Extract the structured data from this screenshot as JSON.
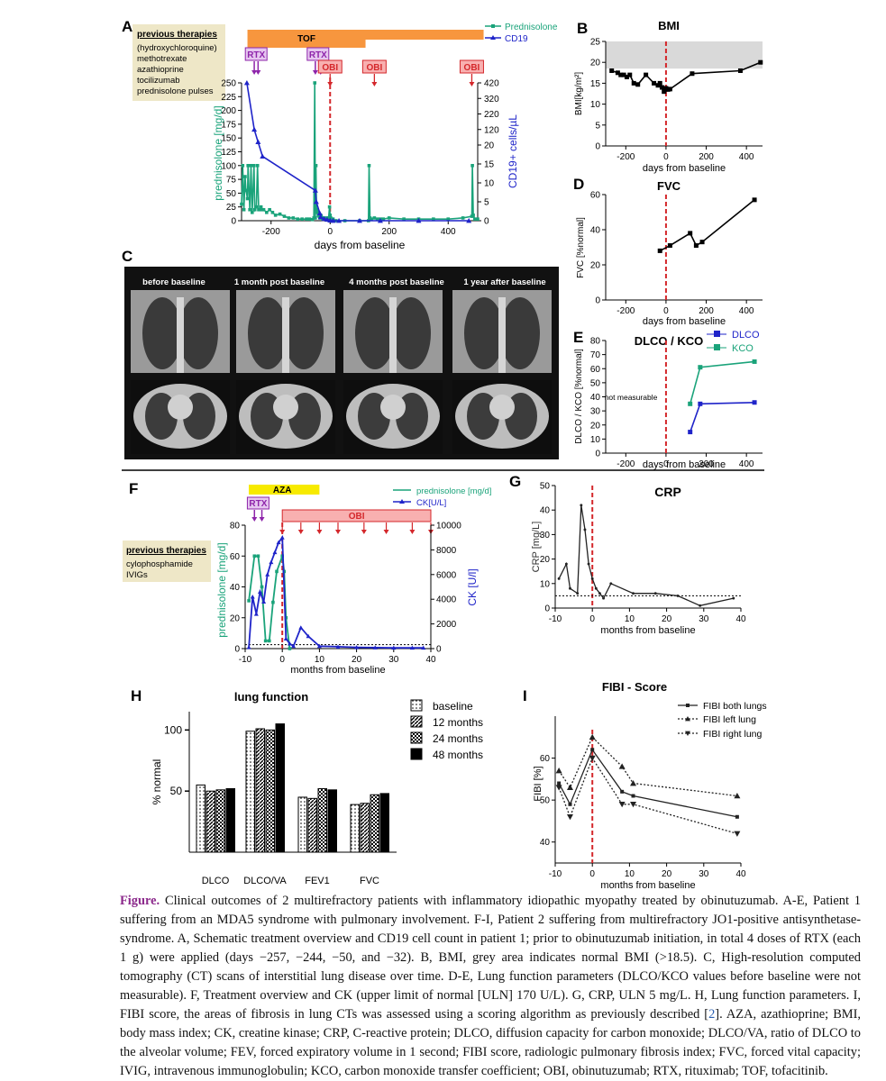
{
  "figure": {
    "panels": {
      "A": "A",
      "B": "B",
      "C": "C",
      "D": "D",
      "E": "E",
      "F": "F",
      "G": "G",
      "H": "H",
      "I": "I"
    },
    "colors": {
      "green": "#1aa37a",
      "blue": "#1f24c9",
      "red": "#d4272b",
      "orange": "#f6a13a",
      "yellow": "#f7ea00",
      "purple": "#8e24aa",
      "tof": "#f7963e",
      "obiBox": "#f8b0b0",
      "therapy_box": "#eee7c7",
      "grey": "#d9d9d9"
    },
    "panelA": {
      "therapies_title": "previous therapies",
      "therapies": [
        "(hydroxychloroquine)",
        "methotrexate",
        "azathioprine",
        "tocilizumab",
        "prednisolone pulses"
      ],
      "tof_label": "TOF",
      "rtx_label": "RTX",
      "obi_label": "OBI",
      "legend": [
        "Prednisolone",
        "CD19"
      ],
      "y_left_label": "prednisolone [mg/d]",
      "y_right_label": "CD19+ cells/µL",
      "x_label": "days from baseline",
      "y_left_ticks": [
        "0",
        "25",
        "50",
        "75",
        "100",
        "125",
        "150",
        "175",
        "200",
        "225",
        "250"
      ],
      "y_right_ticks": [
        "0",
        "5",
        "10",
        "15",
        "20",
        "120",
        "220",
        "320",
        "420"
      ],
      "x_ticks": [
        "-200",
        "0",
        "200",
        "400"
      ]
    },
    "panelB": {
      "title": "BMI",
      "y_label": "BMI[kg/m²]",
      "x_label": "days from baseline",
      "y_ticks": [
        "0",
        "5",
        "10",
        "15",
        "20",
        "25"
      ],
      "x_ticks": [
        "-200",
        "0",
        "200",
        "400"
      ]
    },
    "panelC": {
      "labels": [
        "before baseline",
        "1 month post baseline",
        "4 months post baseline",
        "1 year after baseline"
      ]
    },
    "panelD": {
      "title": "FVC",
      "y_label": "FVC [%normal]",
      "x_label": "days from baseline",
      "y_ticks": [
        "0",
        "20",
        "40",
        "60"
      ],
      "x_ticks": [
        "-200",
        "0",
        "200",
        "400"
      ]
    },
    "panelE": {
      "title": "DLCO / KCO",
      "y_label": "DLCO / KCO [%normal]",
      "x_label": "days from baseline",
      "annotation": "not measurable",
      "legend": [
        "DLCO",
        "KCO"
      ],
      "y_ticks": [
        "0",
        "10",
        "20",
        "30",
        "40",
        "50",
        "60",
        "70",
        "80"
      ],
      "x_ticks": [
        "-200",
        "0",
        "200",
        "400"
      ]
    },
    "panelF": {
      "therapies_title": "previous therapies",
      "therapies": [
        "cylophosphamide",
        "IVIGs"
      ],
      "aza_label": "AZA",
      "rtx_label": "RTX",
      "obi_label": "OBI",
      "legend": [
        "prednisolone [mg/d]",
        "CK[U/L]"
      ],
      "y_left_label": "prednisolone [mg/d]",
      "y_right_label": "CK [U/l]",
      "x_label": "months from baseline",
      "y_left_ticks": [
        "0",
        "20",
        "40",
        "60",
        "80"
      ],
      "y_right_ticks": [
        "0",
        "2000",
        "4000",
        "6000",
        "8000",
        "10000"
      ],
      "x_ticks": [
        "-10",
        "0",
        "10",
        "20",
        "30",
        "40"
      ]
    },
    "panelG": {
      "title": "CRP",
      "y_label": "CRP [mg/L]",
      "x_label": "months from baseline",
      "y_ticks": [
        "0",
        "10",
        "20",
        "30",
        "40",
        "50"
      ],
      "x_ticks": [
        "-10",
        "0",
        "10",
        "20",
        "30",
        "40"
      ]
    },
    "panelH": {
      "title": "lung function",
      "y_label": "% normal",
      "legend": [
        "baseline",
        "12 months",
        "24 months",
        "48 months"
      ],
      "y_ticks": [
        "50",
        "100"
      ]
    },
    "panelI": {
      "title": "FIBI - Score",
      "y_label": "FIBI [%]",
      "x_label": "months from baseline",
      "legend": [
        "FIBI both lungs",
        "FIBI left lung",
        "FIBI right lung"
      ],
      "y_ticks": [
        "40",
        "50",
        "60"
      ],
      "x_ticks": [
        "-10",
        "0",
        "10",
        "20",
        "30",
        "40"
      ]
    }
  },
  "chart_data": [
    {
      "panel": "A",
      "type": "line",
      "xlim": [
        -300,
        500
      ],
      "series": [
        {
          "name": "Prednisolone",
          "axis": "left",
          "ylim": [
            0,
            250
          ],
          "x": [
            -300,
            -296,
            -292,
            -288,
            -285,
            -280,
            -278,
            -272,
            -268,
            -264,
            -258,
            -255,
            -250,
            -246,
            -242,
            -238,
            -234,
            -230,
            -225,
            -215,
            -205,
            -195,
            -185,
            -170,
            -155,
            -140,
            -125,
            -110,
            -95,
            -80,
            -70,
            -60,
            -55,
            -52,
            -50,
            -48,
            -46,
            -43,
            -40,
            -37,
            -35,
            -32,
            -30,
            -28,
            -25,
            -20,
            -15,
            -10,
            -5,
            -2,
            0,
            2,
            5,
            10,
            20,
            50,
            100,
            130,
            132,
            135,
            140,
            150,
            160,
            170,
            180,
            200,
            250,
            300,
            350,
            400,
            450,
            480,
            482,
            485,
            490,
            500
          ],
          "y": [
            30,
            100,
            20,
            80,
            55,
            40,
            100,
            20,
            100,
            15,
            100,
            20,
            25,
            100,
            20,
            20,
            25,
            20,
            20,
            15,
            20,
            15,
            10,
            12,
            8,
            5,
            5,
            3,
            3,
            3,
            3,
            2,
            5,
            250,
            5,
            100,
            20,
            15,
            10,
            8,
            5,
            10,
            8,
            5,
            3,
            5,
            3,
            5,
            5,
            25,
            10,
            5,
            3,
            3,
            0,
            0,
            0,
            0,
            100,
            5,
            3,
            5,
            3,
            3,
            3,
            5,
            3,
            3,
            3,
            3,
            5,
            8,
            100,
            10,
            3,
            3
          ]
        },
        {
          "name": "CD19",
          "axis": "right",
          "ylim": [
            0,
            420
          ],
          "x": [
            -282,
            -257,
            -244,
            -229,
            -50,
            -47,
            -35,
            -32,
            -20,
            -10,
            0,
            10,
            30,
            100,
            170,
            300,
            470
          ],
          "y": [
            420,
            120,
            40,
            17,
            8,
            5,
            2,
            1,
            0.5,
            0.3,
            0.1,
            0,
            0,
            0,
            0,
            0,
            0
          ]
        }
      ],
      "events": {
        "RTX_days": [
          -257,
          -244,
          -50,
          -32
        ],
        "OBI_days": [
          0,
          150,
          480
        ],
        "TOF_bar": [
          -280,
          520
        ]
      }
    },
    {
      "panel": "B",
      "type": "line",
      "xlim": [
        -300,
        480
      ],
      "ylim": [
        0,
        25
      ],
      "normal_range": [
        18.5,
        25
      ],
      "series": [
        {
          "name": "",
          "x": [
            -270,
            -240,
            -225,
            -210,
            -195,
            -180,
            -160,
            -140,
            -100,
            -60,
            -40,
            -30,
            -20,
            -10,
            -5,
            0,
            10,
            20,
            130,
            370,
            470
          ],
          "y": [
            18,
            17.5,
            17,
            17,
            16.5,
            17,
            15,
            14.7,
            17,
            15,
            14.5,
            15,
            14,
            13,
            13.5,
            13.8,
            13.5,
            13.6,
            17.3,
            18,
            20
          ]
        }
      ]
    },
    {
      "panel": "D",
      "type": "line",
      "xlim": [
        -300,
        480
      ],
      "ylim": [
        0,
        60
      ],
      "series": [
        {
          "name": "",
          "x": [
            -30,
            20,
            120,
            150,
            180,
            440
          ],
          "y": [
            28,
            31,
            38,
            31,
            33,
            57
          ]
        }
      ]
    },
    {
      "panel": "E",
      "type": "line",
      "xlim": [
        -300,
        480
      ],
      "ylim": [
        0,
        80
      ],
      "series": [
        {
          "name": "DLCO",
          "x": [
            120,
            170,
            440
          ],
          "y": [
            15,
            35,
            36
          ]
        },
        {
          "name": "KCO",
          "x": [
            120,
            170,
            440
          ],
          "y": [
            35,
            61,
            65
          ]
        }
      ],
      "annotation": "not measurable"
    },
    {
      "panel": "F",
      "type": "line",
      "xlim": [
        -10,
        40
      ],
      "series": [
        {
          "name": "prednisolone [mg/d]",
          "axis": "left",
          "ylim": [
            0,
            80
          ],
          "x": [
            -9,
            -7.5,
            -6.5,
            -5.5,
            -4.5,
            -3.5,
            -2.5,
            -1.5,
            0,
            0.5,
            1,
            2
          ],
          "y": [
            31,
            60,
            60,
            40,
            5,
            5,
            30,
            50,
            60,
            50,
            20,
            0
          ]
        },
        {
          "name": "CK[U/L]",
          "axis": "right",
          "ylim": [
            0,
            10000
          ],
          "x": [
            -9,
            -8,
            -7,
            -6,
            -5,
            -4,
            -3,
            -2,
            -1,
            0,
            1,
            2,
            3,
            5,
            7,
            10,
            15,
            20,
            25,
            30,
            35,
            38
          ],
          "y": [
            100,
            4200,
            2800,
            4600,
            3800,
            6000,
            7000,
            7800,
            8600,
            9000,
            800,
            400,
            200,
            1700,
            1000,
            200,
            150,
            100,
            80,
            60,
            60,
            60
          ]
        }
      ],
      "events": {
        "RTX_months": [
          -7.5,
          -5.5
        ],
        "AZA_bar": [
          -10,
          10
        ],
        "OBI_bar": [
          0,
          40
        ],
        "OBI_arrows": [
          0,
          5,
          10,
          15,
          22,
          28,
          35,
          40
        ]
      }
    },
    {
      "panel": "G",
      "type": "line",
      "xlim": [
        -10,
        40
      ],
      "ylim": [
        0,
        50
      ],
      "uln": 5,
      "series": [
        {
          "name": "",
          "x": [
            -9,
            -7,
            -6,
            -4,
            -3,
            -2,
            -1,
            0,
            1,
            2,
            3,
            5,
            11,
            17,
            23,
            29,
            38
          ],
          "y": [
            12,
            18,
            8,
            6,
            42,
            32,
            18,
            12,
            8,
            6,
            4,
            10,
            6,
            6,
            5,
            1,
            4
          ]
        }
      ]
    },
    {
      "panel": "H",
      "type": "bar",
      "categories": [
        "DLCO",
        "DLCO/VA",
        "FEV1",
        "FVC"
      ],
      "series": [
        {
          "name": "baseline",
          "values": [
            55,
            99,
            45,
            39
          ]
        },
        {
          "name": "12 months",
          "values": [
            50,
            101,
            44,
            40
          ]
        },
        {
          "name": "24 months",
          "values": [
            51,
            100,
            52,
            47
          ]
        },
        {
          "name": "48 months",
          "values": [
            52,
            105,
            51,
            48
          ]
        }
      ],
      "ylim": [
        0,
        115
      ]
    },
    {
      "panel": "I",
      "type": "line",
      "xlim": [
        -10,
        40
      ],
      "ylim": [
        35,
        70
      ],
      "series": [
        {
          "name": "FIBI both lungs",
          "x": [
            -9,
            -6,
            0,
            8,
            11,
            39
          ],
          "y": [
            54,
            49,
            62,
            52,
            51,
            46
          ]
        },
        {
          "name": "FIBI left lung",
          "x": [
            -9,
            -6,
            0,
            8,
            11,
            39
          ],
          "y": [
            57,
            53,
            65,
            58,
            54,
            51
          ]
        },
        {
          "name": "FIBI right lung",
          "x": [
            -9,
            -6,
            0,
            8,
            11,
            39
          ],
          "y": [
            53,
            46,
            60,
            49,
            49,
            42
          ]
        }
      ]
    }
  ],
  "caption": {
    "heading": "Figure.",
    "text_1": " Clinical outcomes of 2 multirefractory patients with inflammatory idiopathic myopathy treated by obinutuzumab. A-E, Patient 1 suffering from an MDA5 syndrome with pulmonary involvement. F-I, Patient 2 suffering from multirefractory JO1-positive antisynthetase-syndrome. A, Schematic treatment overview and CD19 cell count in patient 1; prior to obinutuzumab initiation, in total 4 doses of RTX (each 1 g) were applied (days −257, −244, −50, and −32). B, BMI, grey area indicates normal BMI (>18.5). C, High-resolution computed tomography (CT) scans of interstitial lung disease over time. D-E, Lung function parameters (DLCO/KCO values before baseline were not measurable). F, Treatment overview and CK (upper limit of normal [ULN] 170 U/L). G, CRP, ULN 5 mg/L. H, Lung function parameters. I, FIBI score, the areas of fibrosis in lung CTs was assessed using a scoring algorithm as previously described [",
    "ref": "2",
    "text_2": "]. AZA, azathioprine; BMI, body mass index; CK, creatine kinase; CRP, C-reactive protein; DLCO, diffusion capacity for carbon monoxide; DLCO/VA, ratio of DLCO to the alveolar volume; FEV, forced expiratory volume in 1 second; FIBI score, radiologic pulmonary fibrosis index; FVC, forced vital capacity; IVIG, intravenous immunoglobulin; KCO, carbon monoxide transfer coefficient; OBI, obinutuzumab; RTX, rituximab; TOF, tofacitinib."
  }
}
